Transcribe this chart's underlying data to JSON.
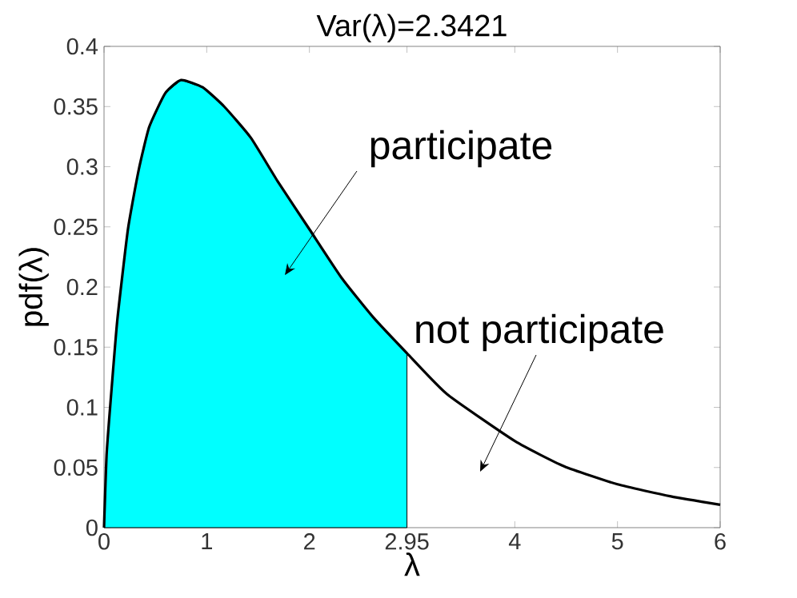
{
  "chart_data": {
    "type": "line",
    "title": "Var(λ)=2.3421",
    "xlabel": "λ",
    "ylabel": "pdf(λ)",
    "xlim": [
      0,
      6
    ],
    "xticks": [
      0,
      1,
      2,
      2.95,
      4,
      5,
      6
    ],
    "ylim": [
      0,
      0.4
    ],
    "yticks": [
      0,
      0.05,
      0.1,
      0.15,
      0.2,
      0.25,
      0.3,
      0.35,
      0.4
    ],
    "series": [
      {
        "type": "area",
        "color": "#00ffff",
        "x": [
          0,
          0.026,
          0.078,
          0.13,
          0.233,
          0.337,
          0.44,
          0.596,
          0.75,
          0.96,
          1.17,
          1.43,
          1.69,
          2.0,
          2.31,
          2.62,
          2.95
        ],
        "values": [
          0,
          0.062,
          0.12,
          0.173,
          0.248,
          0.297,
          0.333,
          0.361,
          0.372,
          0.366,
          0.35,
          0.324,
          0.288,
          0.248,
          0.208,
          0.175,
          0.145
        ]
      },
      {
        "color": "#000000",
        "x": [
          0,
          0.026,
          0.078,
          0.13,
          0.233,
          0.337,
          0.44,
          0.596,
          0.75,
          0.96,
          1.17,
          1.43,
          1.69,
          2.0,
          2.31,
          2.62,
          2.95,
          3.34,
          4.0,
          4.48,
          5.0,
          5.52,
          6.0
        ],
        "values": [
          0,
          0.062,
          0.12,
          0.173,
          0.248,
          0.297,
          0.333,
          0.361,
          0.372,
          0.366,
          0.35,
          0.324,
          0.288,
          0.248,
          0.208,
          0.175,
          0.145,
          0.111,
          0.072,
          0.051,
          0.036,
          0.026,
          0.019
        ]
      }
    ],
    "annotations": [
      "participate",
      "not participate"
    ]
  }
}
